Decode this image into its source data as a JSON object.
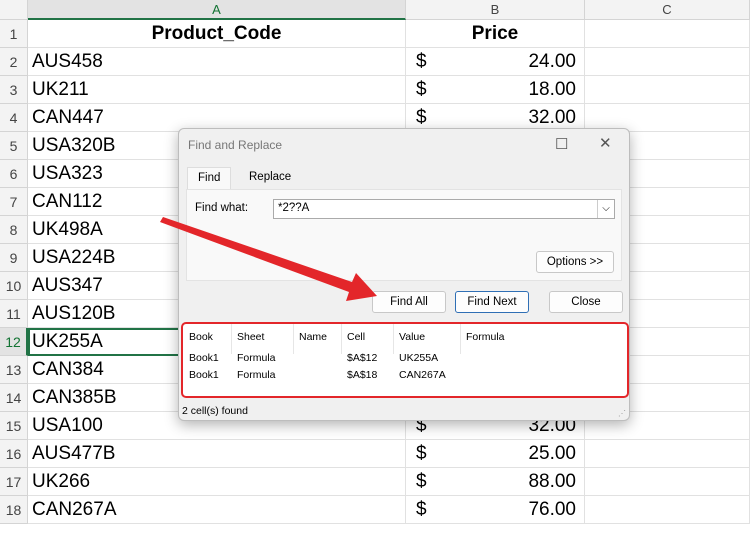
{
  "columns": [
    "A",
    "B",
    "C"
  ],
  "selected_cell": "A12",
  "header_row": {
    "a": "Product_Code",
    "b": "Price"
  },
  "rows": [
    {
      "n": "1"
    },
    {
      "n": "2",
      "a": "AUS458",
      "cur": "$",
      "price": "24.00"
    },
    {
      "n": "3",
      "a": "UK211",
      "cur": "$",
      "price": "18.00"
    },
    {
      "n": "4",
      "a": "CAN447",
      "cur": "$",
      "price": "32.00"
    },
    {
      "n": "5",
      "a": "USA320B"
    },
    {
      "n": "6",
      "a": "USA323"
    },
    {
      "n": "7",
      "a": "CAN112"
    },
    {
      "n": "8",
      "a": "UK498A"
    },
    {
      "n": "9",
      "a": "USA224B"
    },
    {
      "n": "10",
      "a": "AUS347"
    },
    {
      "n": "11",
      "a": "AUS120B"
    },
    {
      "n": "12",
      "a": "UK255A"
    },
    {
      "n": "13",
      "a": "CAN384"
    },
    {
      "n": "14",
      "a": "CAN385B"
    },
    {
      "n": "15",
      "a": "USA100",
      "cur": "$",
      "price": "32.00"
    },
    {
      "n": "16",
      "a": "AUS477B",
      "cur": "$",
      "price": "25.00"
    },
    {
      "n": "17",
      "a": "UK266",
      "cur": "$",
      "price": "88.00"
    },
    {
      "n": "18",
      "a": "CAN267A",
      "cur": "$",
      "price": "76.00"
    }
  ],
  "dialog": {
    "title": "Find and Replace",
    "tabs": [
      "Find",
      "Replace"
    ],
    "find_label": "Find what:",
    "find_value": "*2??A",
    "options": "Options >>",
    "find_all": "Find All",
    "find_next": "Find Next",
    "close": "Close",
    "result_headers": [
      "Book",
      "Sheet",
      "Name",
      "Cell",
      "Value",
      "Formula"
    ],
    "results": [
      [
        "Book1",
        "Formula",
        "",
        "$A$12",
        "UK255A",
        ""
      ],
      [
        "Book1",
        "Formula",
        "",
        "$A$18",
        "CAN267A",
        ""
      ]
    ],
    "status": "2 cell(s) found"
  },
  "annotation_color": "#e3262a"
}
